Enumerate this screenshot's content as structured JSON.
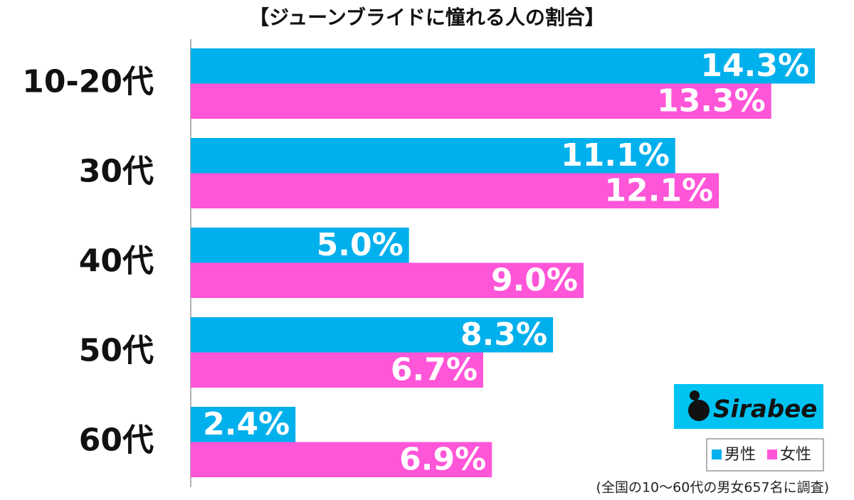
{
  "chart_data": {
    "type": "bar",
    "orientation": "horizontal",
    "title": "【ジューンブライドに憧れる人の割合】",
    "categories": [
      "10-20代",
      "30代",
      "40代",
      "50代",
      "60代"
    ],
    "series": [
      {
        "name": "男性",
        "color": "#00b0ec",
        "values": [
          14.3,
          11.1,
          5.0,
          8.3,
          2.4
        ],
        "value_labels": [
          "14.3%",
          "11.1%",
          "5.0%",
          "8.3%",
          "2.4%"
        ]
      },
      {
        "name": "女性",
        "color": "#ff55d8",
        "values": [
          13.3,
          12.1,
          9.0,
          6.7,
          6.9
        ],
        "value_labels": [
          "13.3%",
          "12.1%",
          "9.0%",
          "6.7%",
          "6.9%"
        ]
      }
    ],
    "xlim": [
      0,
      15
    ],
    "logo": "Sirabee",
    "note": "(全国の10〜60代の男女657名に調査)"
  }
}
